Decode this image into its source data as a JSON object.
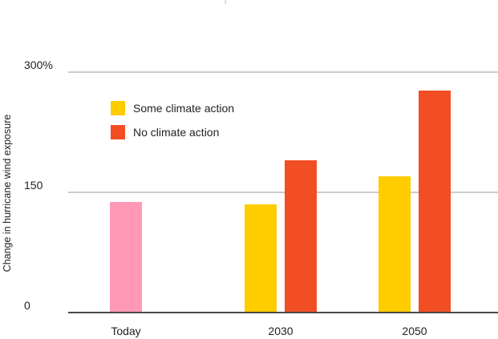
{
  "chart_data": {
    "type": "bar",
    "categories": [
      "Today",
      "2030",
      "2050"
    ],
    "ylabel": "Change in hurricane wind exposure",
    "ylim": [
      0,
      300
    ],
    "yticks": [
      0,
      150,
      300
    ],
    "ytick_labels": [
      "0",
      "150",
      "300%"
    ],
    "grid": true,
    "legend_position": "top-left",
    "series": [
      {
        "name": "Today",
        "color": "#FF99B5",
        "values": [
          138,
          null,
          null
        ]
      },
      {
        "name": "Some climate action",
        "color": "#FFCC00",
        "values": [
          null,
          135,
          170
        ]
      },
      {
        "name": "No climate action",
        "color": "#F24E24",
        "values": [
          null,
          190,
          277
        ]
      }
    ]
  },
  "legend": [
    {
      "label": "Some climate action",
      "color": "#FFCC00"
    },
    {
      "label": "No climate action",
      "color": "#F24E24"
    }
  ],
  "colors": {
    "grid": "#9a9a9a",
    "axis": "#4a4a4a",
    "text": "#222222",
    "top_mark": "#f5c6c6"
  }
}
